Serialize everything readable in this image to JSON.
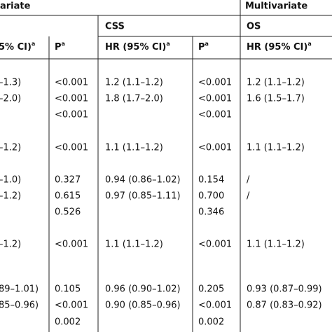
{
  "table": {
    "group_headers": {
      "left": "ariate",
      "right": "Multivariate"
    },
    "sub_headers": {
      "css": "CSS",
      "os": "OS"
    },
    "column_headers": [
      {
        "text": "5% CI)",
        "sup": "a"
      },
      {
        "text": "P",
        "sup": "a"
      },
      {
        "text": "HR (95% CI)",
        "sup": "a"
      },
      {
        "text": "P",
        "sup": "a"
      },
      {
        "text": "HR (95% CI)",
        "sup": "a"
      }
    ],
    "rows": [
      [
        "–1.3)",
        "<0.001",
        "1.2 (1.1–1.2)",
        "<0.001",
        "1.2 (1.1–1.2)"
      ],
      [
        "–2.0)",
        "<0.001",
        "1.8 (1.7–2.0)",
        "<0.001",
        "1.6 (1.5–1.7)"
      ],
      [
        null,
        "<0.001",
        null,
        "<0.001",
        null
      ],
      [
        "–1.2)",
        "<0.001",
        "1.1 (1.1–1.2)",
        "<0.001",
        "1.1 (1.1–1.2)"
      ],
      [
        "–1.0)",
        "0.327",
        "0.94 (0.86–1.02)",
        "0.154",
        "/"
      ],
      [
        "–1.2)",
        "0.615",
        "0.97 (0.85–1.11)",
        "0.700",
        "/"
      ],
      [
        null,
        "0.526",
        null,
        "0.346",
        null
      ],
      [
        "–1.2)",
        "<0.001",
        "1.1 (1.1–1.2)",
        "<0.001",
        "1.1 (1.1–1.2)"
      ],
      [
        "89–1.01)",
        "0.105",
        "0.96 (0.90–1.02)",
        "0.205",
        "0.93 (0.87–0.99)"
      ],
      [
        "85–0.96)",
        "<0.001",
        "0.90 (0.85–0.96)",
        "<0.001",
        "0.87 (0.83–0.92)"
      ],
      [
        null,
        "0.002",
        null,
        "0.002",
        null
      ]
    ]
  }
}
